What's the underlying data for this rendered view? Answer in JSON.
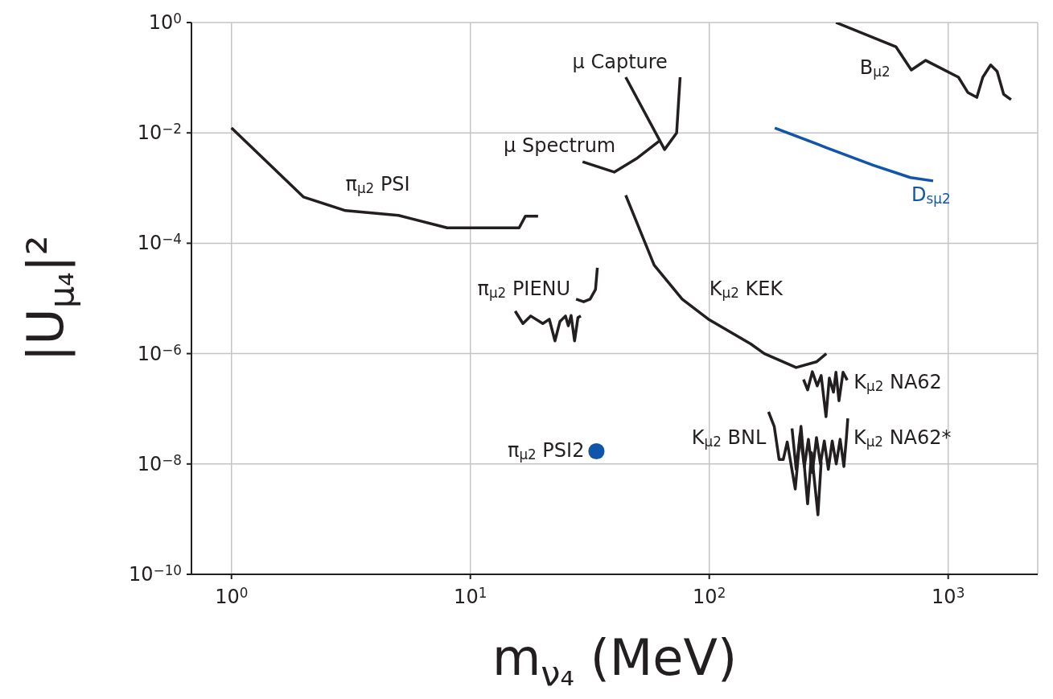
{
  "chart_data": {
    "type": "line",
    "xlabel": "m$_{ν₄}$ (MeV)",
    "ylabel": "|U$_{μ₄}$|²",
    "log": "xy",
    "grid": true,
    "legend": false,
    "xlim": [
      0.68,
      2370
    ],
    "ylim": [
      1e-10,
      1
    ],
    "xticks": [
      {
        "value": 1,
        "label": "10$^{0}$"
      },
      {
        "value": 10,
        "label": "10$^{1}$"
      },
      {
        "value": 100,
        "label": "10$^{2}$"
      },
      {
        "value": 1000,
        "label": "10$^{3}$"
      }
    ],
    "yticks": [
      {
        "value": 1e-10,
        "label": "10$^{−10}$"
      },
      {
        "value": 1e-08,
        "label": "10$^{−8}$"
      },
      {
        "value": 1e-06,
        "label": "10$^{−6}$"
      },
      {
        "value": 0.0001,
        "label": "10$^{−4}$"
      },
      {
        "value": 0.01,
        "label": "10$^{−2}$"
      },
      {
        "value": 1,
        "label": "10$^{0}$"
      }
    ],
    "series": [
      {
        "name": "π$_{μ2}$ PSI",
        "color": "#231f20",
        "x": [
          1,
          2,
          3,
          5,
          8,
          16,
          17,
          19.2
        ],
        "values": [
          0.0123,
          0.00069,
          0.00039,
          0.00032,
          0.00019,
          0.00019,
          0.00031,
          0.00031
        ]
      },
      {
        "name": "μ Spectrum",
        "color": "#231f20",
        "x": [
          29.5,
          40,
          50,
          62.5
        ],
        "values": [
          0.003,
          0.00195,
          0.0035,
          0.0074
        ]
      },
      {
        "name": "μ Capture",
        "color": "#231f20",
        "x": [
          44.7,
          65,
          73,
          75.5
        ],
        "values": [
          0.102,
          0.005,
          0.01,
          0.102
        ]
      },
      {
        "name": "B$_{μ2}$",
        "color": "#231f20",
        "x": [
          339,
          604,
          701,
          805,
          1104,
          1208,
          1318,
          1396,
          1506,
          1603,
          1707,
          1833
        ],
        "values": [
          1,
          0.365,
          0.138,
          0.206,
          0.102,
          0.054,
          0.044,
          0.102,
          0.17,
          0.13,
          0.05,
          0.04
        ]
      },
      {
        "name": "D$_{sμ2}$",
        "color": "#1155aa",
        "x": [
          188,
          306,
          485,
          695,
          865
        ],
        "values": [
          0.0123,
          0.0055,
          0.0026,
          0.00155,
          0.00135
        ]
      },
      {
        "name": "K$_{μ2}$ KEK",
        "color": "#231f20",
        "x": [
          44.7,
          58.8,
          77,
          100,
          149,
          170,
          231,
          281,
          309
        ],
        "values": [
          0.00074,
          4e-05,
          9.7e-06,
          4.1e-06,
          1.5e-06,
          1e-06,
          5.6e-07,
          7.1e-07,
          1e-06
        ]
      },
      {
        "name": "π$_{μ2}$ PIENU",
        "color": "#231f20",
        "x": [
          15.4,
          16.6,
          17.9,
          20.1,
          21.4,
          22.6,
          23.7,
          25,
          25.7,
          26.4,
          27.3,
          28.2,
          29,
          28.5,
          27.7,
          29.8,
          31.7,
          33.4,
          34
        ],
        "values": [
          5.9e-06,
          3.5e-06,
          4.8e-06,
          3.5e-06,
          4.2e-06,
          1.7e-06,
          3.8e-06,
          4.8e-06,
          3.2e-06,
          4.9e-06,
          1.7e-06,
          4.5e-06,
          4.8e-06,
          null,
          9.7e-06,
          8.7e-06,
          9.7e-06,
          1.45e-05,
          3.6e-05
        ]
      },
      {
        "name": "K$_{μ2}$ NA62",
        "color": "#231f20",
        "x": [
          248,
          258,
          270,
          283,
          294,
          308,
          318,
          331,
          339,
          349,
          363,
          378
        ],
        "values": [
          3.4e-07,
          2.2e-07,
          4.7e-07,
          2.6e-07,
          4e-07,
          7.2e-08,
          3.6e-07,
          2e-07,
          4.6e-07,
          1.4e-07,
          4.6e-07,
          3.3e-07
        ]
      },
      {
        "name": "K$_{μ2}$ BNL",
        "color": "#231f20",
        "x": [
          177,
          187,
          196,
          204,
          212,
          229,
          242,
          258,
          268,
          285,
          294
        ],
        "values": [
          8.8e-08,
          4.8e-08,
          1.2e-08,
          1.2e-08,
          2.5e-08,
          3.5e-09,
          4.8e-08,
          1.9e-09,
          1.6e-08,
          1.2e-09,
          1.1e-08
        ]
      },
      {
        "name": "K$_{μ2}$ NA62*",
        "color": "#231f20",
        "x": [
          222,
          231,
          240,
          250,
          260,
          270,
          281,
          292,
          303,
          315,
          327,
          340,
          353,
          366,
          375,
          380
        ],
        "values": [
          4.4e-08,
          8e-09,
          3.5e-08,
          9e-09,
          2.8e-08,
          7e-09,
          3e-08,
          1e-08,
          2.6e-08,
          8e-09,
          2.6e-08,
          1e-08,
          2.8e-08,
          9e-09,
          3e-08,
          6.7e-08
        ]
      },
      {
        "type": "scatter",
        "color": "#1155aa",
        "marker": "circle",
        "x": [
          33.7
        ],
        "values": [
          1.7e-08
        ]
      }
    ],
    "annotations": [
      {
        "text": "π$_{μ2}$ PSI2",
        "x": 33.7,
        "y": 1.7e-08
      }
    ]
  }
}
